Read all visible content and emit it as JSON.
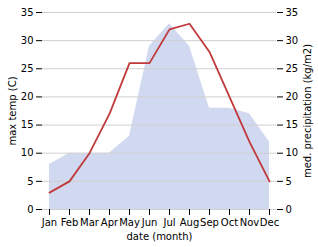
{
  "chart_data": {
    "type": "line",
    "categories": [
      "Jan",
      "Feb",
      "Mar",
      "Apr",
      "May",
      "Jun",
      "Jul",
      "Aug",
      "Sep",
      "Oct",
      "Nov",
      "Dec"
    ],
    "series": [
      {
        "type": "area",
        "axis": "y2",
        "color": "#b8c4e8",
        "values": [
          8,
          10,
          10,
          10,
          13,
          29,
          33,
          29,
          18,
          18,
          17,
          12
        ]
      },
      {
        "type": "line",
        "color": "#c0393b",
        "values": [
          3,
          5,
          10,
          17,
          26,
          26,
          32,
          33,
          28,
          20,
          12,
          5
        ]
      }
    ],
    "xlabel": "date (month)",
    "ylabel": "max temp (C)",
    "y2label": "med. precipitation (kg/m2)",
    "ylim": [
      0,
      35
    ],
    "yticks": [
      0,
      5,
      10,
      15,
      20,
      25,
      30,
      35
    ],
    "y2lim": [
      0,
      35
    ],
    "y2ticks": [
      0,
      5,
      10,
      15,
      20,
      25,
      30,
      35
    ],
    "grid": true
  }
}
